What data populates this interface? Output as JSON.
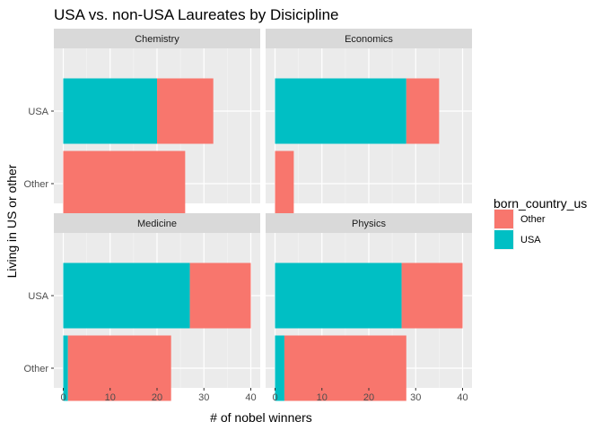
{
  "chart_data": {
    "type": "bar",
    "orientation": "horizontal",
    "stacked": true,
    "title": "USA vs. non-USA Laureates by Disicipline",
    "xlabel": "# of nobel winners",
    "ylabel": "Living in US or other",
    "xlim": [
      0,
      40
    ],
    "x_ticks": [
      0,
      10,
      20,
      30,
      40
    ],
    "categories": [
      "USA",
      "Other"
    ],
    "legend": {
      "title": "born_country_us",
      "position": "right",
      "entries": [
        {
          "name": "Other",
          "color": "#F8766D"
        },
        {
          "name": "USA",
          "color": "#00BFC4"
        }
      ]
    },
    "grid": true,
    "panels": [
      {
        "name": "Chemistry",
        "series": [
          {
            "name": "USA",
            "values": [
              20,
              0
            ]
          },
          {
            "name": "Other",
            "values": [
              12,
              26
            ]
          }
        ]
      },
      {
        "name": "Economics",
        "series": [
          {
            "name": "USA",
            "values": [
              28,
              0
            ]
          },
          {
            "name": "Other",
            "values": [
              7,
              4
            ]
          }
        ]
      },
      {
        "name": "Medicine",
        "series": [
          {
            "name": "USA",
            "values": [
              27,
              1
            ]
          },
          {
            "name": "Other",
            "values": [
              13,
              22
            ]
          }
        ]
      },
      {
        "name": "Physics",
        "series": [
          {
            "name": "USA",
            "values": [
              27,
              2
            ]
          },
          {
            "name": "Other",
            "values": [
              13,
              26
            ]
          }
        ]
      }
    ]
  }
}
